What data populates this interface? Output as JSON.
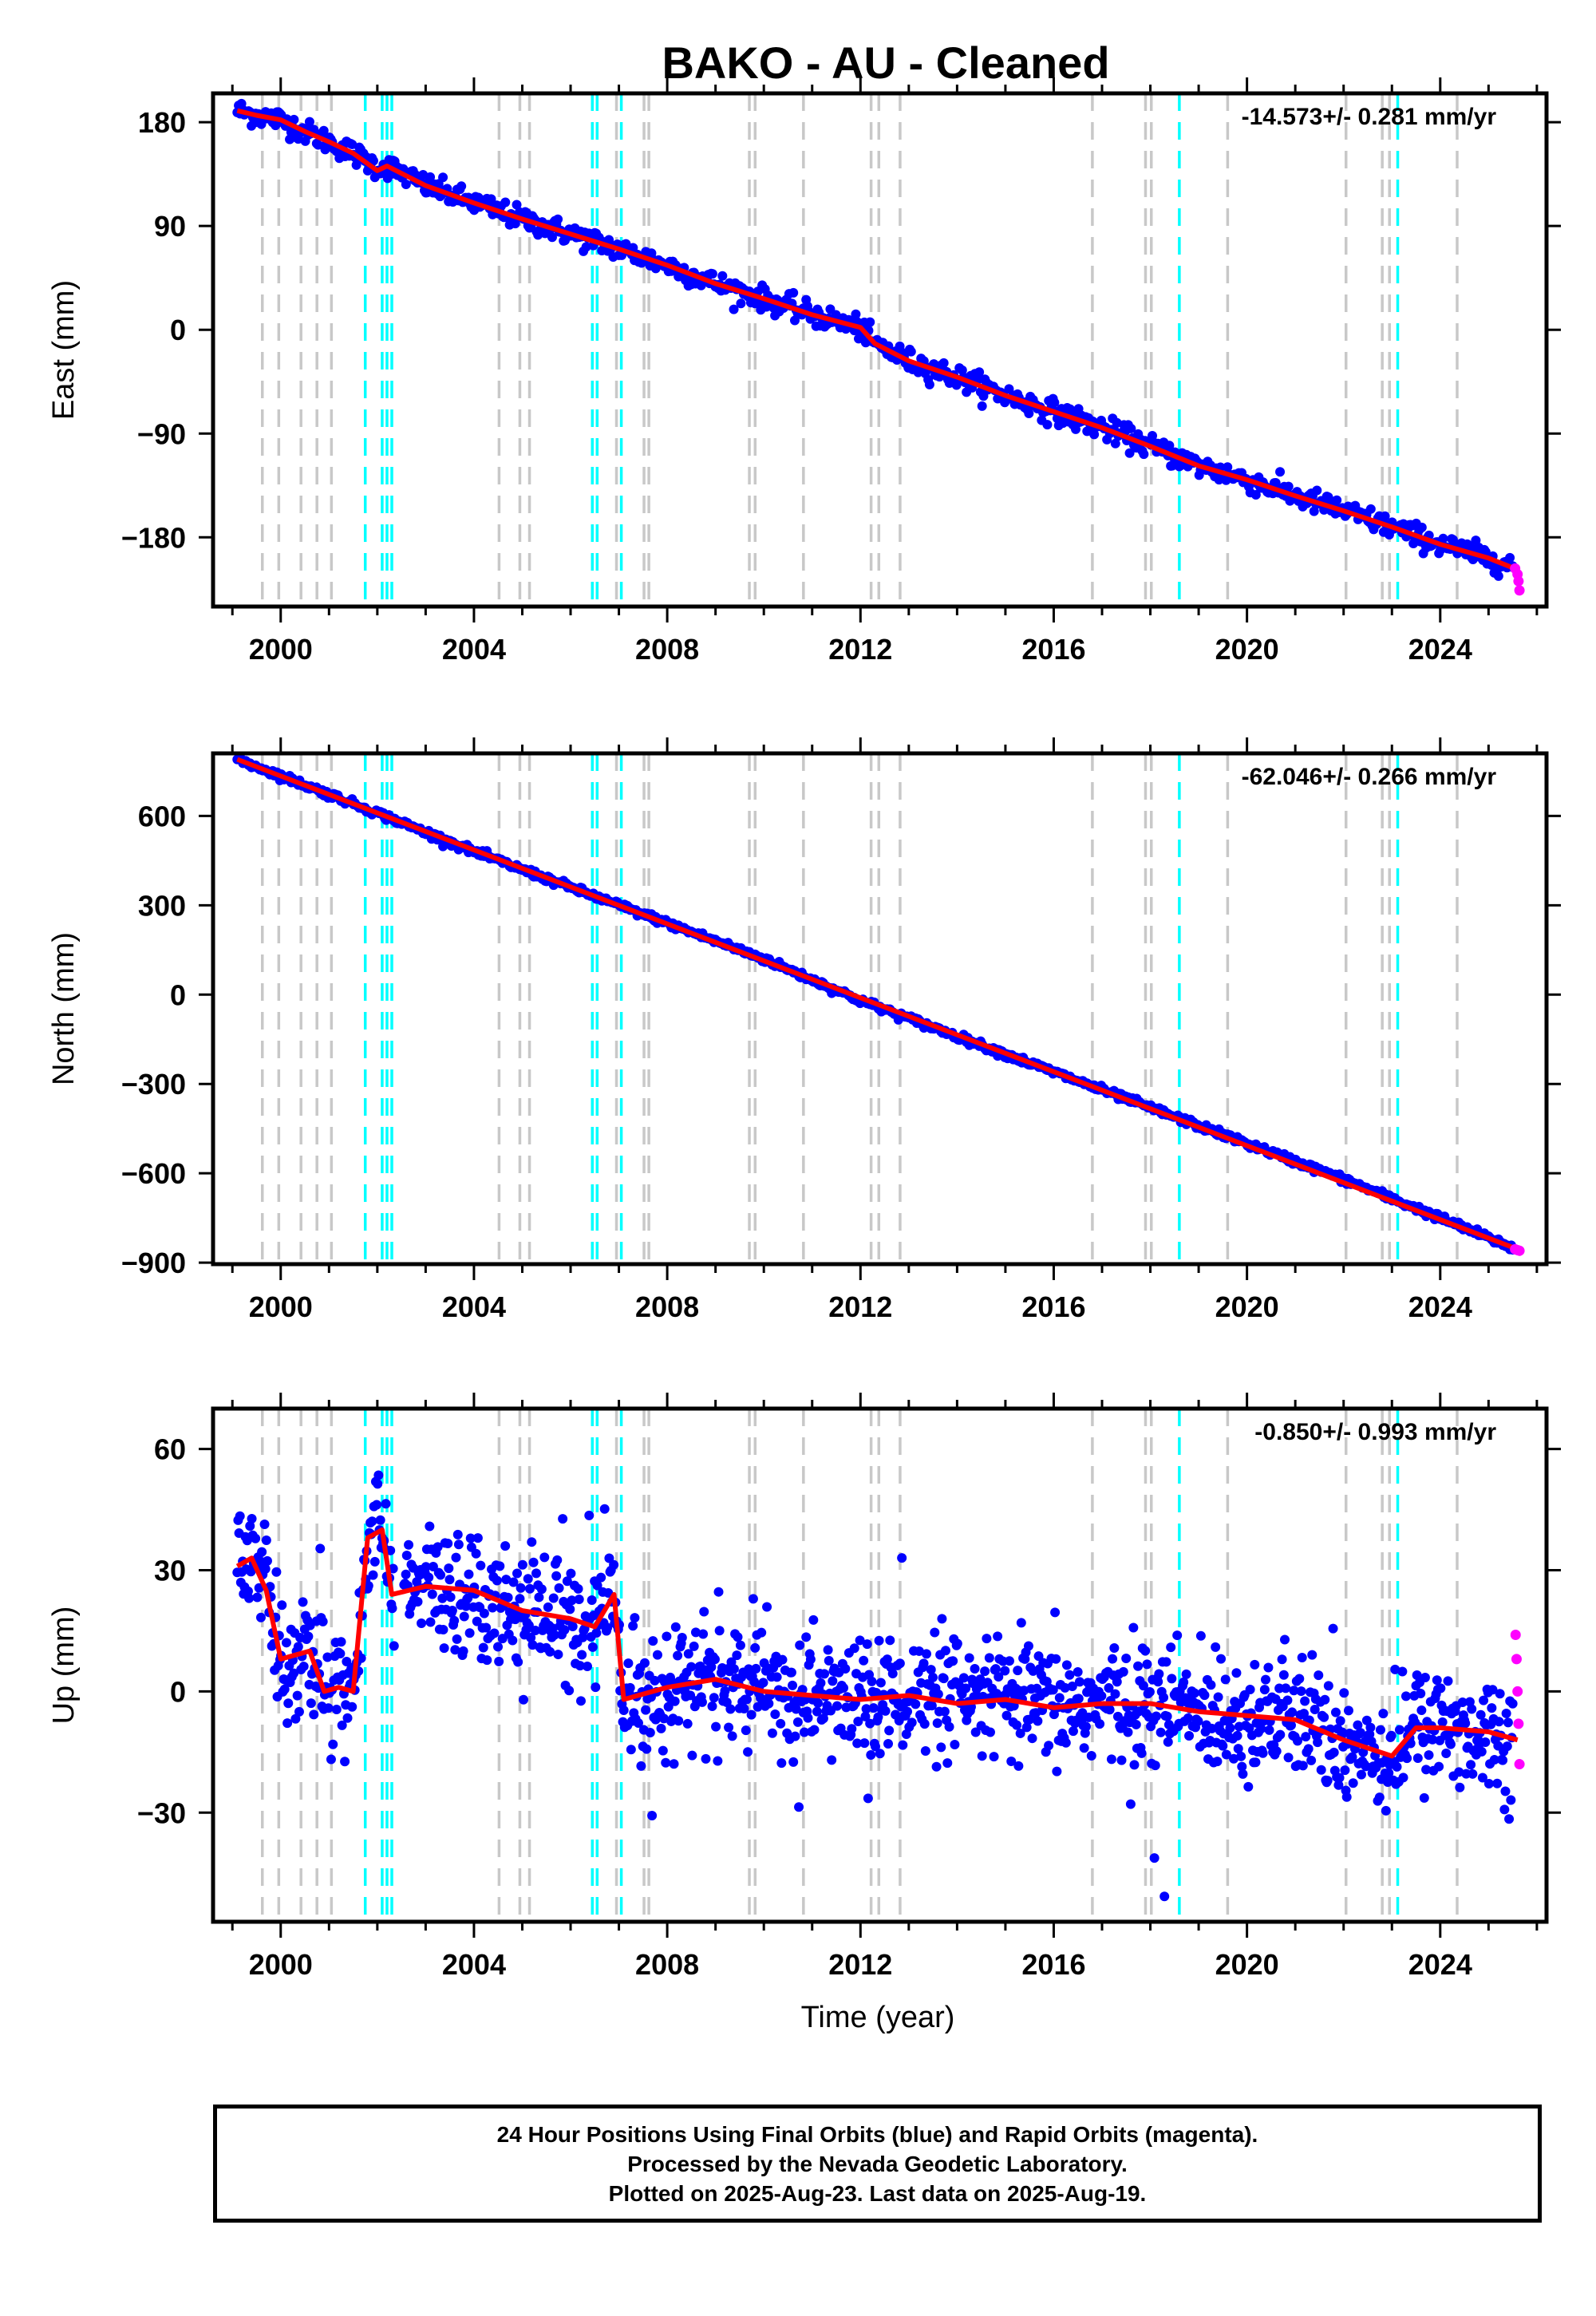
{
  "title": "BAKO  - AU - Cleaned",
  "xlabel": "Time (year)",
  "caption": [
    "24 Hour Positions Using Final Orbits (blue) and Rapid Orbits (magenta).",
    "Processed by the Nevada Geodetic Laboratory.",
    "Plotted on 2025-Aug-23. Last data on 2025-Aug-19."
  ],
  "colors": {
    "final_orbits": "#0000ff",
    "rapid_orbits": "#ff00ff",
    "model": "#ff0000",
    "event_gray": "#c8c8c8",
    "event_cyan": "#00ffff"
  },
  "chart_data": [
    {
      "type": "scatter",
      "ylabel": "East (mm)",
      "rate_text": "-14.573+/- 0.281 mm/yr",
      "xlim": [
        1998.6,
        2026.2
      ],
      "ylim": [
        -240,
        205
      ],
      "xticks": [
        2000,
        2004,
        2008,
        2012,
        2016,
        2020,
        2024
      ],
      "yticks": [
        180,
        90,
        0,
        -90,
        -180
      ],
      "series": [
        {
          "role": "final_orbits",
          "x": [
            1999.1,
            1999.5,
            2000.0,
            2000.5,
            2001.0,
            2001.5,
            2002.0,
            2002.2,
            2003.0,
            2004.0,
            2005.0,
            2006.0,
            2007.0,
            2008.0,
            2009.0,
            2010.0,
            2011.0,
            2012.0,
            2012.3,
            2013.0,
            2014.0,
            2015.0,
            2016.0,
            2017.0,
            2018.0,
            2019.0,
            2020.0,
            2021.0,
            2022.0,
            2023.0,
            2024.0,
            2025.0,
            2025.5
          ],
          "y": [
            190,
            186,
            182,
            172,
            163,
            153,
            141,
            142,
            125,
            110,
            96,
            83,
            70,
            56,
            40,
            27,
            13,
            2,
            -12,
            -27,
            -41,
            -57,
            -71,
            -85,
            -101,
            -118,
            -130,
            -144,
            -157,
            -171,
            -186,
            -198,
            -205
          ]
        },
        {
          "role": "rapid_orbits",
          "x": [
            2025.55,
            2025.6,
            2025.62,
            2025.64
          ],
          "y": [
            -207,
            -212,
            -218,
            -226
          ]
        },
        {
          "role": "model",
          "x": [
            1999.1,
            1999.5,
            2000.0,
            2000.5,
            2001.0,
            2001.5,
            2002.0,
            2002.2,
            2003.0,
            2004.0,
            2005.0,
            2006.0,
            2007.0,
            2008.0,
            2009.0,
            2010.0,
            2011.0,
            2012.0,
            2012.3,
            2013.0,
            2014.0,
            2015.0,
            2016.0,
            2017.0,
            2018.0,
            2019.0,
            2020.0,
            2021.0,
            2022.0,
            2023.0,
            2024.0,
            2025.0,
            2025.6
          ],
          "y": [
            190,
            186,
            182,
            172,
            163,
            153,
            138,
            142,
            125,
            110,
            96,
            83,
            70,
            56,
            40,
            27,
            13,
            2,
            -12,
            -27,
            -41,
            -57,
            -71,
            -85,
            -101,
            -118,
            -130,
            -144,
            -157,
            -171,
            -186,
            -198,
            -208
          ]
        }
      ]
    },
    {
      "type": "scatter",
      "ylabel": "North (mm)",
      "rate_text": "-62.046+/- 0.266 mm/yr",
      "xlim": [
        1998.6,
        2026.2
      ],
      "ylim": [
        -905,
        810
      ],
      "xticks": [
        2000,
        2004,
        2008,
        2012,
        2016,
        2020,
        2024
      ],
      "yticks": [
        600,
        300,
        0,
        -300,
        -600,
        -900
      ],
      "series": [
        {
          "role": "final_orbits",
          "x": [
            1999.1,
            2000.0,
            2002.0,
            2004.0,
            2006.0,
            2008.0,
            2010.0,
            2012.0,
            2014.0,
            2016.0,
            2018.0,
            2020.0,
            2022.0,
            2024.0,
            2025.5
          ],
          "y": [
            790,
            735,
            610,
            480,
            360,
            240,
            120,
            -20,
            -140,
            -260,
            -380,
            -500,
            -620,
            -750,
            -850
          ]
        },
        {
          "role": "rapid_orbits",
          "x": [
            2025.55,
            2025.6,
            2025.64
          ],
          "y": [
            -855,
            -858,
            -860
          ]
        },
        {
          "role": "model",
          "x": [
            1999.1,
            2025.6
          ],
          "y": [
            790,
            -855
          ]
        }
      ]
    },
    {
      "type": "scatter",
      "ylabel": "Up (mm)",
      "rate_text": "-0.850+/- 0.993 mm/yr",
      "xlim": [
        1998.6,
        2026.2
      ],
      "ylim": [
        -57,
        70
      ],
      "xticks": [
        2000,
        2004,
        2008,
        2012,
        2016,
        2020,
        2024
      ],
      "yticks": [
        60,
        30,
        0,
        -30
      ],
      "series": [
        {
          "role": "final_orbits",
          "x": [
            1999.1,
            1999.4,
            1999.7,
            2000.0,
            2000.3,
            2000.6,
            2000.9,
            2001.2,
            2001.5,
            2001.8,
            2002.1,
            2002.3,
            2003.0,
            2004.0,
            2005.0,
            2006.0,
            2006.5,
            2006.9,
            2007.1,
            2008.0,
            2009.0,
            2010.0,
            2011.0,
            2012.0,
            2013.0,
            2014.0,
            2015.0,
            2016.0,
            2017.0,
            2018.0,
            2019.0,
            2020.0,
            2021.0,
            2022.0,
            2022.5,
            2023.0,
            2023.5,
            2024.0,
            2025.0,
            2025.5
          ],
          "y": [
            31,
            33,
            25,
            8,
            9,
            10,
            0,
            1,
            0,
            38,
            40,
            24,
            26,
            25,
            20,
            18,
            16,
            24,
            -2,
            1,
            3,
            0,
            -1,
            -2,
            -1,
            -3,
            -2,
            -4,
            -3,
            -3,
            -5,
            -6,
            -7,
            -12,
            -14,
            -16,
            -9,
            -9,
            -10,
            -12
          ]
        },
        {
          "role": "rapid_orbits",
          "x": [
            2025.56,
            2025.58,
            2025.6,
            2025.62,
            2025.64
          ],
          "y": [
            14,
            8,
            0,
            -8,
            -18
          ]
        },
        {
          "role": "model",
          "x": [
            1999.1,
            1999.4,
            1999.7,
            2000.0,
            2000.3,
            2000.6,
            2000.9,
            2001.2,
            2001.5,
            2001.8,
            2002.1,
            2002.3,
            2003.0,
            2004.0,
            2005.0,
            2006.0,
            2006.5,
            2006.9,
            2007.1,
            2008.0,
            2009.0,
            2010.0,
            2011.0,
            2012.0,
            2013.0,
            2014.0,
            2015.0,
            2016.0,
            2017.0,
            2018.0,
            2019.0,
            2020.0,
            2021.0,
            2022.0,
            2022.5,
            2023.0,
            2023.5,
            2024.0,
            2025.0,
            2025.6
          ],
          "y": [
            31,
            33,
            25,
            8,
            9,
            10,
            0,
            1,
            0,
            38,
            40,
            24,
            26,
            25,
            20,
            18,
            16,
            24,
            -2,
            1,
            3,
            0,
            -1,
            -2,
            -1,
            -3,
            -2,
            -4,
            -3,
            -3,
            -5,
            -6,
            -7,
            -12,
            -14,
            -16,
            -9,
            -9,
            -10,
            -12
          ]
        }
      ]
    }
  ],
  "events": {
    "gray": [
      1999.62,
      1999.96,
      2000.42,
      2000.75,
      2001.05,
      2004.52,
      2004.95,
      2005.15,
      2006.95,
      2007.52,
      2007.62,
      2009.7,
      2009.82,
      2010.82,
      2012.22,
      2012.38,
      2012.82,
      2016.8,
      2017.9,
      2018.02,
      2019.6,
      2022.05,
      2022.8,
      2022.95,
      2024.35
    ],
    "cyan": [
      2001.75,
      2002.1,
      2002.2,
      2002.3,
      2006.45,
      2006.55,
      2007.05,
      2018.6,
      2023.12
    ]
  }
}
